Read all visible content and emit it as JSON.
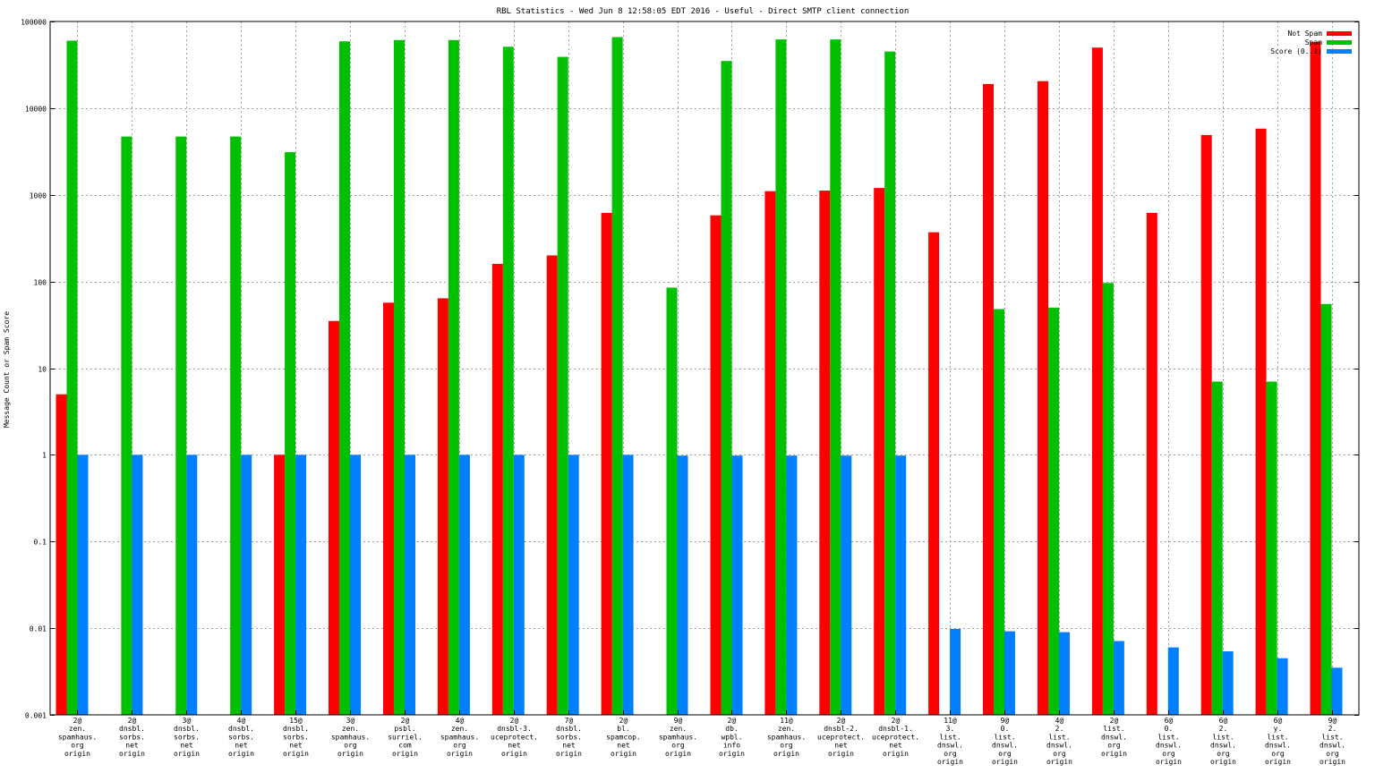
{
  "chart_data": {
    "type": "bar",
    "title": "RBL Statistics - Wed Jun  8 12:58:05 EDT 2016 - Useful - Direct SMTP client connection",
    "xlabel": "",
    "ylabel": "Message Count or Spam Score",
    "yscale": "log",
    "ylim": [
      0.001,
      100000
    ],
    "yticks": [
      {
        "value": 100000,
        "label": "100000"
      },
      {
        "value": 10000,
        "label": "10000"
      },
      {
        "value": 1000,
        "label": "1000"
      },
      {
        "value": 100,
        "label": "100"
      },
      {
        "value": 10,
        "label": "10"
      },
      {
        "value": 1,
        "label": "1"
      },
      {
        "value": 0.1,
        "label": "0.1"
      },
      {
        "value": 0.01,
        "label": "0.01"
      },
      {
        "value": 0.001,
        "label": "0.001"
      }
    ],
    "grid": true,
    "legend_position": "top-right",
    "categories": [
      [
        "2@",
        "zen.",
        "spamhaus.",
        "org",
        "origin"
      ],
      [
        "2@",
        "dnsbl.",
        "sorbs.",
        "net",
        "origin"
      ],
      [
        "3@",
        "dnsbl.",
        "sorbs.",
        "net",
        "origin"
      ],
      [
        "4@",
        "dnsbl.",
        "sorbs.",
        "net",
        "origin"
      ],
      [
        "15@",
        "dnsbl.",
        "sorbs.",
        "net",
        "origin"
      ],
      [
        "3@",
        "zen.",
        "spamhaus.",
        "org",
        "origin"
      ],
      [
        "2@",
        "psbl.",
        "surriel.",
        "com",
        "origin"
      ],
      [
        "4@",
        "zen.",
        "spamhaus.",
        "org",
        "origin"
      ],
      [
        "2@",
        "dnsbl-3.",
        "uceprotect.",
        "net",
        "origin"
      ],
      [
        "7@",
        "dnsbl.",
        "sorbs.",
        "net",
        "origin"
      ],
      [
        "2@",
        "bl.",
        "spamcop.",
        "net",
        "origin"
      ],
      [
        "9@",
        "zen.",
        "spamhaus.",
        "org",
        "origin"
      ],
      [
        "2@",
        "db.",
        "wpbl.",
        "info",
        "origin"
      ],
      [
        "11@",
        "zen.",
        "spamhaus.",
        "org",
        "origin"
      ],
      [
        "2@",
        "dnsbl-2.",
        "uceprotect.",
        "net",
        "origin"
      ],
      [
        "2@",
        "dnsbl-1.",
        "uceprotect.",
        "net",
        "origin"
      ],
      [
        "11@",
        "3.",
        "list.",
        "dnswl.",
        "org",
        "origin"
      ],
      [
        "9@",
        "0.",
        "list.",
        "dnswl.",
        "org",
        "origin"
      ],
      [
        "4@",
        "2.",
        "list.",
        "dnswl.",
        "org",
        "origin"
      ],
      [
        "2@",
        "list.",
        "dnswl.",
        "org",
        "origin"
      ],
      [
        "6@",
        "0.",
        "list.",
        "dnswl.",
        "org",
        "origin"
      ],
      [
        "6@",
        "2.",
        "list.",
        "dnswl.",
        "org",
        "origin"
      ],
      [
        "6@",
        "y.",
        "list.",
        "dnswl.",
        "org",
        "origin"
      ],
      [
        "9@",
        "2.",
        "list.",
        "dnswl.",
        "org",
        "origin"
      ]
    ],
    "series": [
      {
        "name": "Not Spam",
        "color": "#ff0000",
        "values": [
          5,
          0,
          0,
          0,
          1,
          35,
          57,
          64,
          160,
          200,
          620,
          0,
          580,
          1100,
          1120,
          1200,
          370,
          19000,
          20500,
          50000,
          620,
          4900,
          5800,
          58000
        ]
      },
      {
        "name": "Spam",
        "color": "#00c000",
        "values": [
          60000,
          4700,
          4700,
          4700,
          3100,
          59000,
          61000,
          61000,
          51000,
          39000,
          66000,
          85,
          35000,
          62000,
          62000,
          45000,
          0,
          48,
          50,
          96,
          0,
          7,
          7,
          55
        ]
      },
      {
        "name": "Score (0..1)",
        "color": "#0080ff",
        "values": [
          1,
          1,
          1,
          1,
          1,
          1,
          1,
          1,
          1,
          1,
          1,
          0.98,
          0.98,
          0.98,
          0.98,
          0.98,
          0.0098,
          0.0092,
          0.009,
          0.0071,
          0.006,
          0.0054,
          0.0045,
          0.0035
        ]
      }
    ]
  }
}
